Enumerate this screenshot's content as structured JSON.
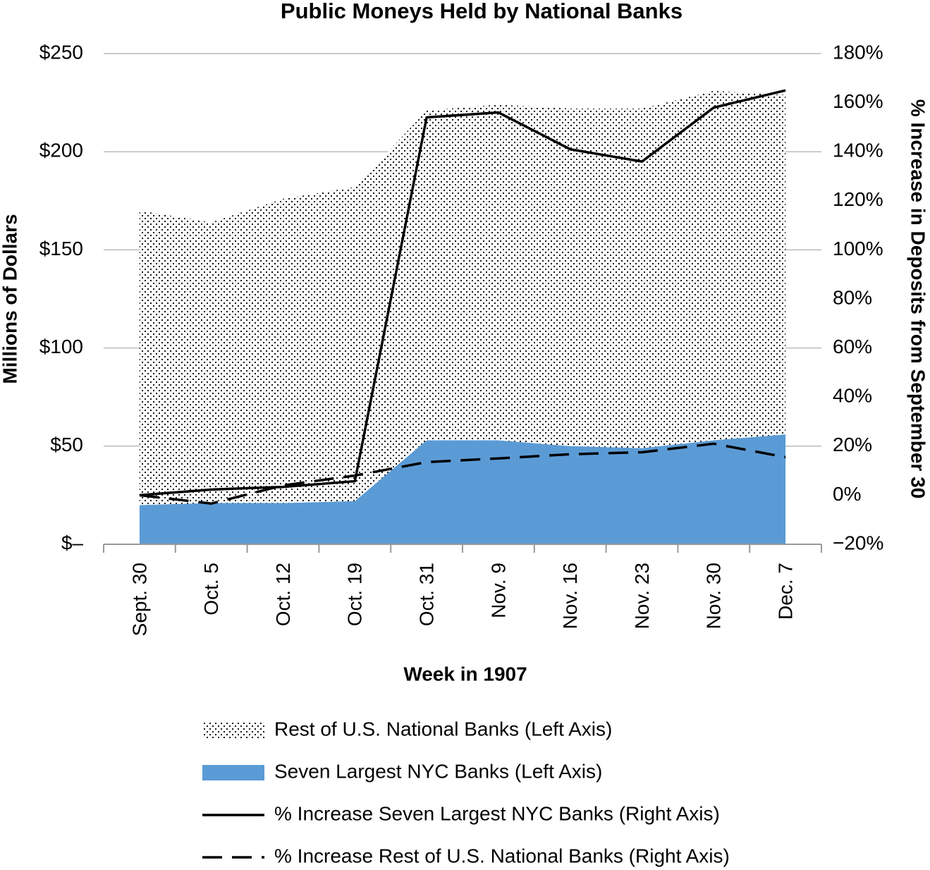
{
  "chart_data": {
    "type": "area",
    "title": "Public Moneys Held by National Banks",
    "x_label": "Week in 1907",
    "y_label": "Millions of Dollars",
    "y2_label": "% Increase in Deposits from September 30",
    "categories": [
      "Sept. 30",
      "Oct. 5",
      "Oct. 12",
      "Oct. 19",
      "Oct. 31",
      "Nov. 9",
      "Nov. 16",
      "Nov. 23",
      "Nov. 30",
      "Dec. 7"
    ],
    "series": [
      {
        "name": "Rest of U.S. National Banks (Left Axis)",
        "type": "area",
        "pattern": "dots",
        "color": "#000000",
        "axis": "y",
        "values": [
          150,
          143,
          155,
          160,
          168,
          171,
          172,
          173,
          178,
          173
        ]
      },
      {
        "name": "Seven Largest NYC Banks (Left Axis)",
        "type": "area",
        "color": "#5b9bd5",
        "axis": "y",
        "values": [
          20,
          21,
          21,
          22,
          53,
          53,
          50,
          49,
          53,
          56
        ]
      },
      {
        "name": "% Increase Seven Largest NYC Banks (Right Axis)",
        "type": "line",
        "color": "#000000",
        "axis": "y2",
        "values": [
          0,
          2.3,
          3.4,
          5.7,
          154,
          156,
          141,
          136,
          158,
          165
        ]
      },
      {
        "name": "% Increase Rest of U.S. National Banks (Right Axis)",
        "type": "line",
        "dashed": true,
        "color": "#000000",
        "axis": "y2",
        "values": [
          0,
          -3.4,
          4,
          8,
          13.5,
          15,
          16.7,
          17.5,
          21,
          15.5
        ]
      }
    ],
    "legend_order": [
      0,
      1,
      2,
      3
    ],
    "stacked_order": [
      1,
      0
    ],
    "ylim": [
      0,
      250
    ],
    "yticks": [
      {
        "value": 0,
        "label": "$–"
      },
      {
        "value": 50,
        "label": "$50"
      },
      {
        "value": 100,
        "label": "$100"
      },
      {
        "value": 150,
        "label": "$150"
      },
      {
        "value": 200,
        "label": "$200"
      },
      {
        "value": 250,
        "label": "$250"
      }
    ],
    "y2lim": [
      -20,
      180
    ],
    "y2ticks": [
      {
        "value": -20,
        "label": "−20%"
      },
      {
        "value": 0,
        "label": "0%"
      },
      {
        "value": 20,
        "label": "20%"
      },
      {
        "value": 40,
        "label": "40%"
      },
      {
        "value": 60,
        "label": "60%"
      },
      {
        "value": 80,
        "label": "80%"
      },
      {
        "value": 100,
        "label": "100%"
      },
      {
        "value": 120,
        "label": "120%"
      },
      {
        "value": 140,
        "label": "140%"
      },
      {
        "value": 160,
        "label": "160%"
      },
      {
        "value": 180,
        "label": "180%"
      }
    ],
    "grid": true,
    "legend_position": "bottom"
  }
}
